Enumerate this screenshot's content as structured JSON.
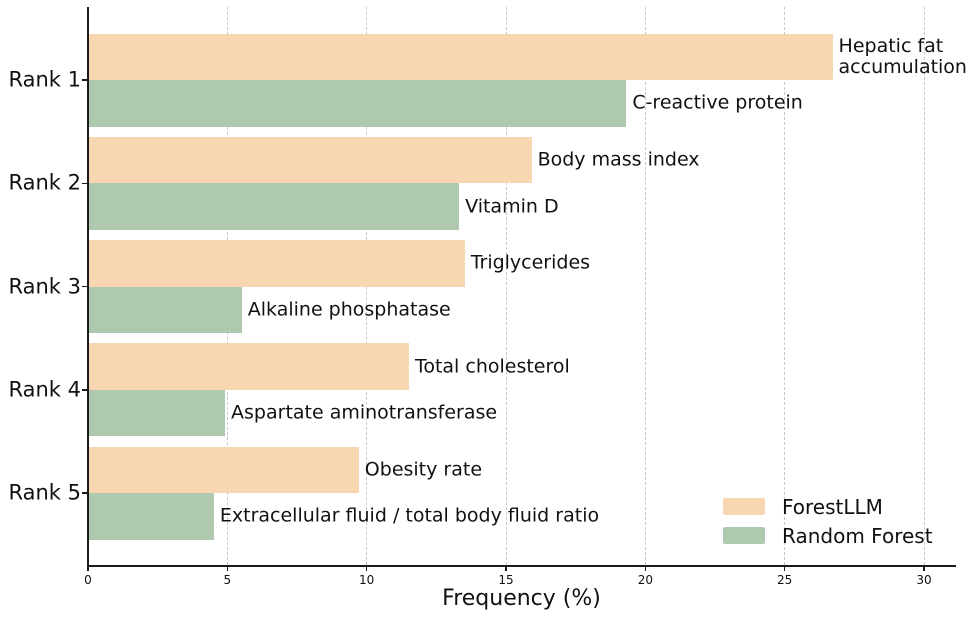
{
  "chart_data": {
    "type": "bar",
    "orientation": "horizontal",
    "title": "",
    "xlabel": "Frequency (%)",
    "ylabel": "",
    "categories": [
      "Rank 1",
      "Rank 2",
      "Rank 3",
      "Rank 4",
      "Rank 5"
    ],
    "series": [
      {
        "name": "ForestLLM",
        "color": "#F9D6B2",
        "values": [
          26.7,
          15.9,
          13.5,
          11.5,
          9.7
        ],
        "bar_labels": [
          "Hepatic fat accumulation",
          "Body mass index",
          "Triglycerides",
          "Total cholesterol",
          "Obesity rate"
        ]
      },
      {
        "name": "Random Forest",
        "color": "#AEC9AE",
        "values": [
          19.3,
          13.3,
          5.5,
          4.9,
          4.5
        ],
        "bar_labels": [
          "C-reactive protein",
          "Vitamin D",
          "Alkaline phosphatase",
          "Aspartate aminotransferase",
          "Extracellular fluid / total body fluid ratio"
        ]
      }
    ],
    "x_ticks": [
      0,
      5,
      10,
      15,
      20,
      25,
      30
    ],
    "xlim": [
      0,
      31.1
    ],
    "grid": "vertical-dashed",
    "grid_color": "#c9c9c9",
    "legend_position": "lower right"
  }
}
